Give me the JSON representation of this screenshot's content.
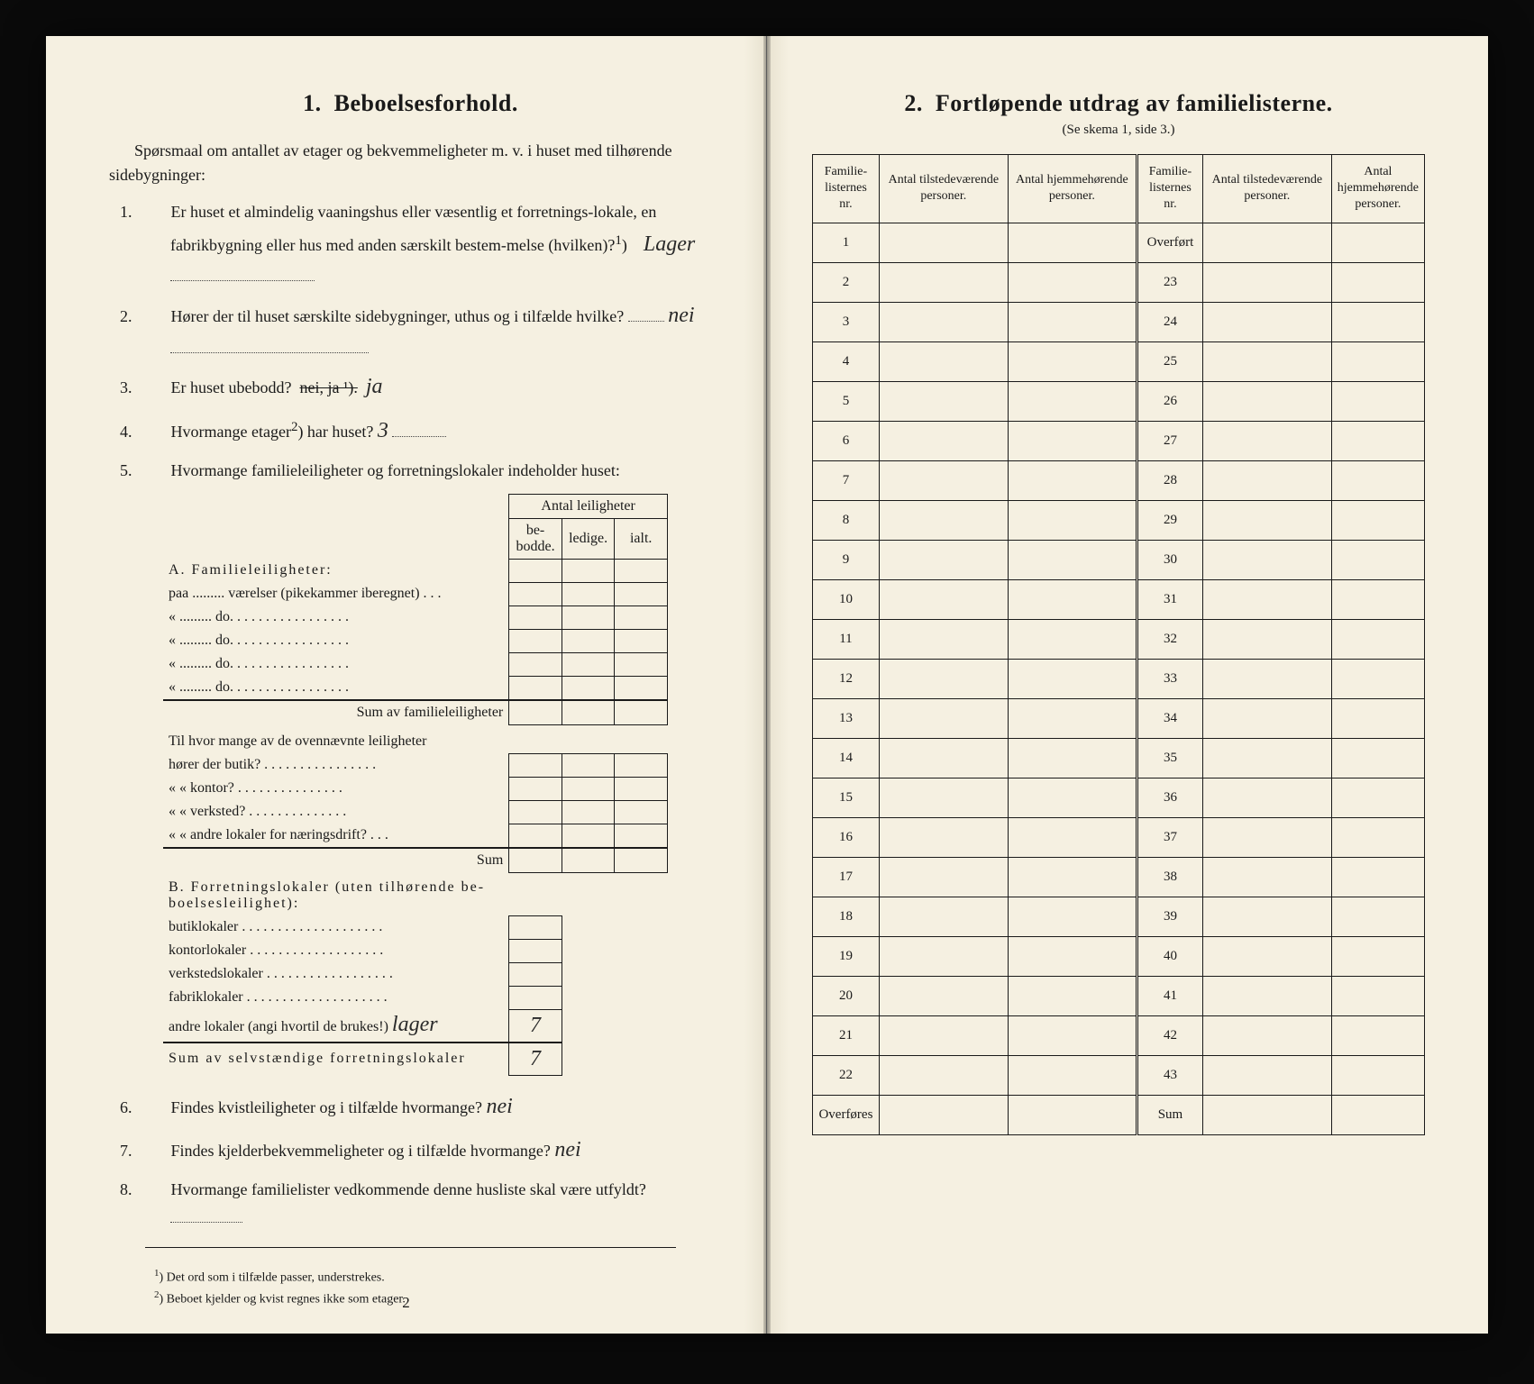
{
  "colors": {
    "paper": "#f5f0e1",
    "ink": "#1a1a1a",
    "outer_bg": "#0a0a0a",
    "shadow_edge": "#e8e2d0"
  },
  "left": {
    "section_number": "1.",
    "section_title": "Beboelsesforhold.",
    "intro": "Spørsmaal om antallet av etager og bekvemmeligheter m. v. i huset med tilhørende sidebygninger:",
    "q1": {
      "num": "1.",
      "text_a": "Er huset et almindelig vaaningshus eller væsentlig et forretnings-lokale, en fabrikbygning eller hus med anden særskilt bestem-melse (hvilken)?",
      "sup": "1",
      "answer": "Lager"
    },
    "q2": {
      "num": "2.",
      "text": "Hører der til huset særskilte sidebygninger, uthus og i tilfælde hvilke?",
      "answer": "nei"
    },
    "q3": {
      "num": "3.",
      "text": "Er huset ubebodd?",
      "struck": "nei, ja ¹).",
      "answer": "ja"
    },
    "q4": {
      "num": "4.",
      "text_a": "Hvormange etager",
      "sup": "2",
      "text_b": ") har huset?",
      "answer": "3"
    },
    "q5": {
      "num": "5.",
      "text": "Hvormange familieleiligheter og forretningslokaler indeholder huset:"
    },
    "inner_table": {
      "header_top": "Antal leiligheter",
      "header_cols": [
        "be-bodde.",
        "ledige.",
        "ialt."
      ],
      "A_label": "A. Familieleiligheter:",
      "A_rows": [
        "paa ......... værelser (pikekammer iberegnet) . . .",
        "«  .........    do.   . . . . . . . . . . . . . . . .",
        "«  .........    do.   . . . . . . . . . . . . . . . .",
        "«  .........    do.   . . . . . . . . . . . . . . . .",
        "«  .........    do.   . . . . . . . . . . . . . . . ."
      ],
      "A_sum": "Sum av familieleiligheter",
      "mid_q": "Til hvor mange av de ovennævnte leiligheter",
      "mid_rows": [
        "hører der butik? . . . . . . . . . . . . . . . .",
        "«    « kontor? . . . . . . . . . . . . . . .",
        "«    « verksted? . . . . . . . . . . . . . .",
        "«    « andre lokaler for næringsdrift? . . ."
      ],
      "mid_sum": "Sum",
      "B_label": "B. Forretningslokaler (uten tilhørende be-boelsesleilighet):",
      "B_rows": [
        "butiklokaler . . . . . . . . . . . . . . . . . . . .",
        "kontorlokaler . . . . . . . . . . . . . . . . . . .",
        "verkstedslokaler . . . . . . . . . . . . . . . . . .",
        "fabriklokaler . . . . . . . . . . . . . . . . . . . ."
      ],
      "B_other_label": "andre lokaler (angi hvortil de brukes!)",
      "B_other_answer": "lager",
      "B_other_val": "7",
      "B_sum_label": "Sum av selvstændige forretningslokaler",
      "B_sum_val": "7"
    },
    "q6": {
      "num": "6.",
      "text": "Findes kvistleiligheter og i tilfælde hvormange?",
      "answer": "nei"
    },
    "q7": {
      "num": "7.",
      "text": "Findes kjelderbekvemmeligheter og i tilfælde hvormange?",
      "answer": "nei"
    },
    "q8": {
      "num": "8.",
      "text": "Hvormange familielister vedkommende denne husliste skal være utfyldt?",
      "answer": ""
    },
    "footnote1": "Det ord som i tilfælde passer, understrekes.",
    "footnote2": "Beboet kjelder og kvist regnes ikke som etager.",
    "page_num": "2"
  },
  "right": {
    "section_number": "2.",
    "section_title": "Fortløpende utdrag av familielisterne.",
    "subtitle": "(Se skema 1, side 3.)",
    "headers": {
      "col1": "Familie-listernes nr.",
      "col2": "Antal tilstedeværende personer.",
      "col3": "Antal hjemmehørende personer.",
      "col4": "Familie-listernes nr.",
      "col5": "Antal tilstedeværende personer.",
      "col6": "Antal hjemmehørende personer."
    },
    "left_rows": [
      "1",
      "2",
      "3",
      "4",
      "5",
      "6",
      "7",
      "8",
      "9",
      "10",
      "11",
      "12",
      "13",
      "14",
      "15",
      "16",
      "17",
      "18",
      "19",
      "20",
      "21",
      "22",
      "Overføres"
    ],
    "right_rows_first": "Overført",
    "right_rows": [
      "23",
      "24",
      "25",
      "26",
      "27",
      "28",
      "29",
      "30",
      "31",
      "32",
      "33",
      "34",
      "35",
      "36",
      "37",
      "38",
      "39",
      "40",
      "41",
      "42",
      "43",
      "Sum"
    ]
  }
}
